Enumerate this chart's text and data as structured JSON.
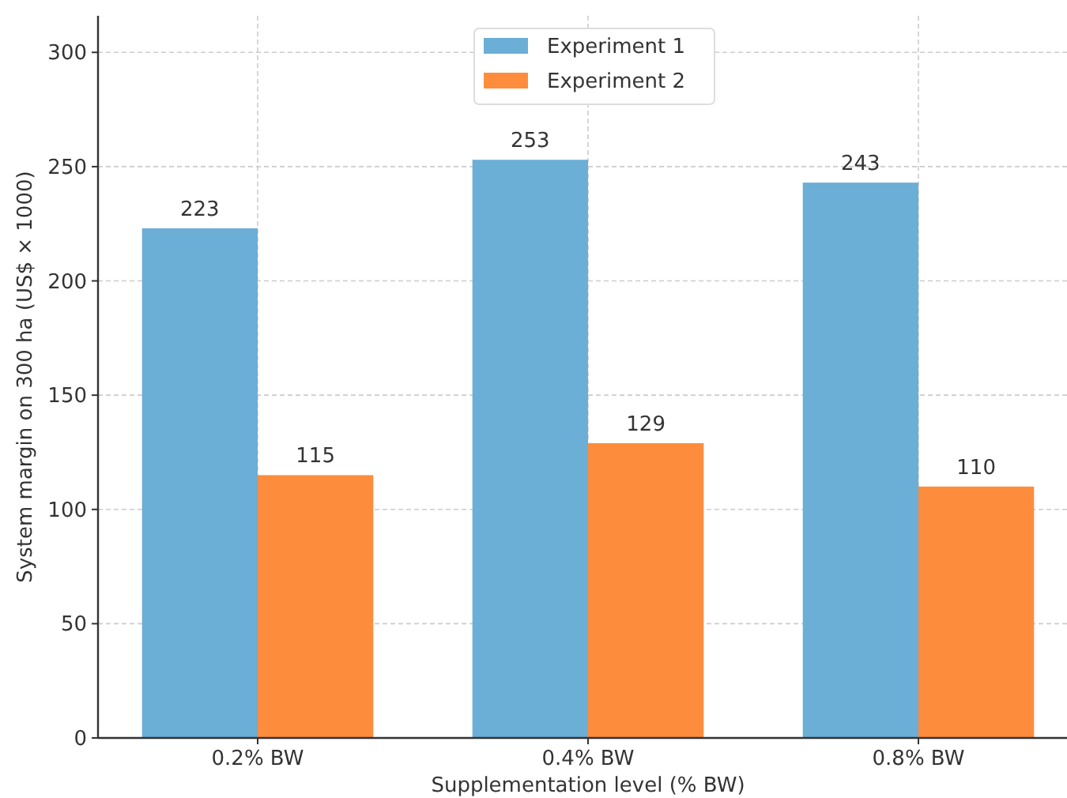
{
  "chart_data": {
    "type": "bar",
    "xlabel": "Supplementation level (% BW)",
    "ylabel": "System margin on 300 ha (US$ × 1000)",
    "categories": [
      "0.2% BW",
      "0.4% BW",
      "0.8% BW"
    ],
    "series": [
      {
        "name": "Experiment 1",
        "color": "#6baed6",
        "values": [
          223,
          253,
          243
        ]
      },
      {
        "name": "Experiment 2",
        "color": "#fd8d3c",
        "values": [
          115,
          129,
          110
        ]
      }
    ],
    "ylim": [
      0,
      316
    ],
    "yticks": [
      0,
      50,
      100,
      150,
      200,
      250,
      300
    ],
    "grid": true,
    "legend": "top",
    "data_labels": true
  }
}
